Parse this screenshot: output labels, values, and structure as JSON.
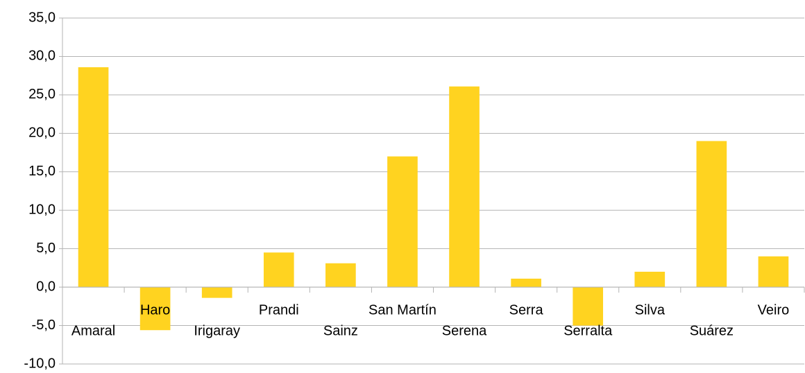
{
  "chart_data": {
    "type": "bar",
    "categories": [
      "Amaral",
      "Haro",
      "Irigaray",
      "Prandi",
      "Sainz",
      "San Martín",
      "Serena",
      "Serra",
      "Serralta",
      "Silva",
      "Suárez",
      "Veiro"
    ],
    "values": [
      28.6,
      -5.6,
      -1.4,
      4.5,
      3.1,
      17.0,
      26.1,
      1.1,
      -5.0,
      2.0,
      19.0,
      4.0
    ],
    "color": "#ffd320",
    "ylim": [
      -10,
      35
    ],
    "yticks": [
      {
        "value": -10,
        "label": "-10,0"
      },
      {
        "value": -5,
        "label": "-5,0"
      },
      {
        "value": 0,
        "label": "0,0"
      },
      {
        "value": 5,
        "label": "5,0"
      },
      {
        "value": 10,
        "label": "10,0"
      },
      {
        "value": 15,
        "label": "15,0"
      },
      {
        "value": 20,
        "label": "20,0"
      },
      {
        "value": 25,
        "label": "25,0"
      },
      {
        "value": 30,
        "label": "30,0"
      },
      {
        "value": 35,
        "label": "35,0"
      }
    ],
    "grid": true
  }
}
